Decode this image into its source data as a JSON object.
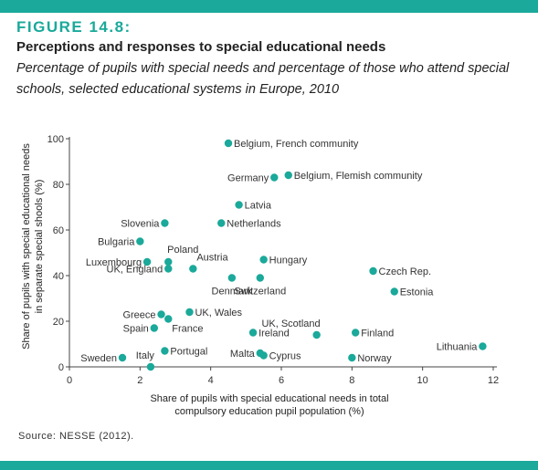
{
  "figure": {
    "label": "FIGURE 14.8:",
    "title": "Perceptions and responses to special educational needs",
    "subtitle": "Percentage of pupils with special needs and percentage of those who attend special schools, selected educational systems in Europe, 2010",
    "source": "Source: NESSE (2012)."
  },
  "colors": {
    "accent": "#1aa99a",
    "point": "#1aa99a",
    "axis": "#444444"
  },
  "chart_data": {
    "type": "scatter",
    "title": "",
    "xlabel_lines": [
      "Share of pupils with special educational needs in total",
      "compulsory education pupil population (%)"
    ],
    "ylabel_lines": [
      "Share of pupils with special educational needs",
      "in separate special shools (%)"
    ],
    "xlim": [
      0,
      12
    ],
    "ylim": [
      0,
      100
    ],
    "xticks": [
      0,
      2,
      4,
      6,
      8,
      10,
      12
    ],
    "yticks": [
      0,
      20,
      40,
      60,
      80,
      100
    ],
    "grid": false,
    "legend": "none",
    "points": [
      {
        "label": "Belgium, French community",
        "x": 4.5,
        "y": 98,
        "anchor": "right"
      },
      {
        "label": "Germany",
        "x": 5.8,
        "y": 83,
        "anchor": "left"
      },
      {
        "label": "Belgium, Flemish community",
        "x": 6.2,
        "y": 84,
        "anchor": "right"
      },
      {
        "label": "Latvia",
        "x": 4.8,
        "y": 71,
        "anchor": "right"
      },
      {
        "label": "Slovenia",
        "x": 2.7,
        "y": 63,
        "anchor": "left"
      },
      {
        "label": "Netherlands",
        "x": 4.3,
        "y": 63,
        "anchor": "right"
      },
      {
        "label": "Bulgaria",
        "x": 2.0,
        "y": 55,
        "anchor": "left"
      },
      {
        "label": "Poland",
        "x": 2.8,
        "y": 46,
        "anchor": "above"
      },
      {
        "label": "Luxembourg",
        "x": 2.2,
        "y": 46,
        "anchor": "left"
      },
      {
        "label": "UK, England",
        "x": 2.8,
        "y": 43,
        "anchor": "left"
      },
      {
        "label": "Austria",
        "x": 3.5,
        "y": 43,
        "anchor": "aboveright"
      },
      {
        "label": "Hungary",
        "x": 5.5,
        "y": 47,
        "anchor": "right"
      },
      {
        "label": "Denmark",
        "x": 4.6,
        "y": 39,
        "anchor": "below"
      },
      {
        "label": "Switzerland",
        "x": 5.4,
        "y": 39,
        "anchor": "below"
      },
      {
        "label": "Czech Rep.",
        "x": 8.6,
        "y": 42,
        "anchor": "right"
      },
      {
        "label": "Estonia",
        "x": 9.2,
        "y": 33,
        "anchor": "right"
      },
      {
        "label": "Greece",
        "x": 2.6,
        "y": 23,
        "anchor": "left"
      },
      {
        "label": "UK, Wales",
        "x": 3.4,
        "y": 24,
        "anchor": "right"
      },
      {
        "label": "France",
        "x": 2.8,
        "y": 21,
        "anchor": "belowright"
      },
      {
        "label": "Spain",
        "x": 2.4,
        "y": 17,
        "anchor": "left"
      },
      {
        "label": "Ireland",
        "x": 5.2,
        "y": 15,
        "anchor": "right"
      },
      {
        "label": "UK, Scotland",
        "x": 7.0,
        "y": 14,
        "anchor": "aboveleft"
      },
      {
        "label": "Finland",
        "x": 8.1,
        "y": 15,
        "anchor": "right"
      },
      {
        "label": "Lithuania",
        "x": 11.7,
        "y": 9,
        "anchor": "left"
      },
      {
        "label": "Portugal",
        "x": 2.7,
        "y": 7,
        "anchor": "right"
      },
      {
        "label": "Malta",
        "x": 5.4,
        "y": 6,
        "anchor": "left"
      },
      {
        "label": "Cyprus",
        "x": 5.5,
        "y": 5,
        "anchor": "right"
      },
      {
        "label": "Italy",
        "x": 2.3,
        "y": 0,
        "anchor": "aboveleft"
      },
      {
        "label": "Sweden",
        "x": 1.5,
        "y": 4,
        "anchor": "left"
      },
      {
        "label": "Norway",
        "x": 8.0,
        "y": 4,
        "anchor": "right"
      }
    ]
  }
}
